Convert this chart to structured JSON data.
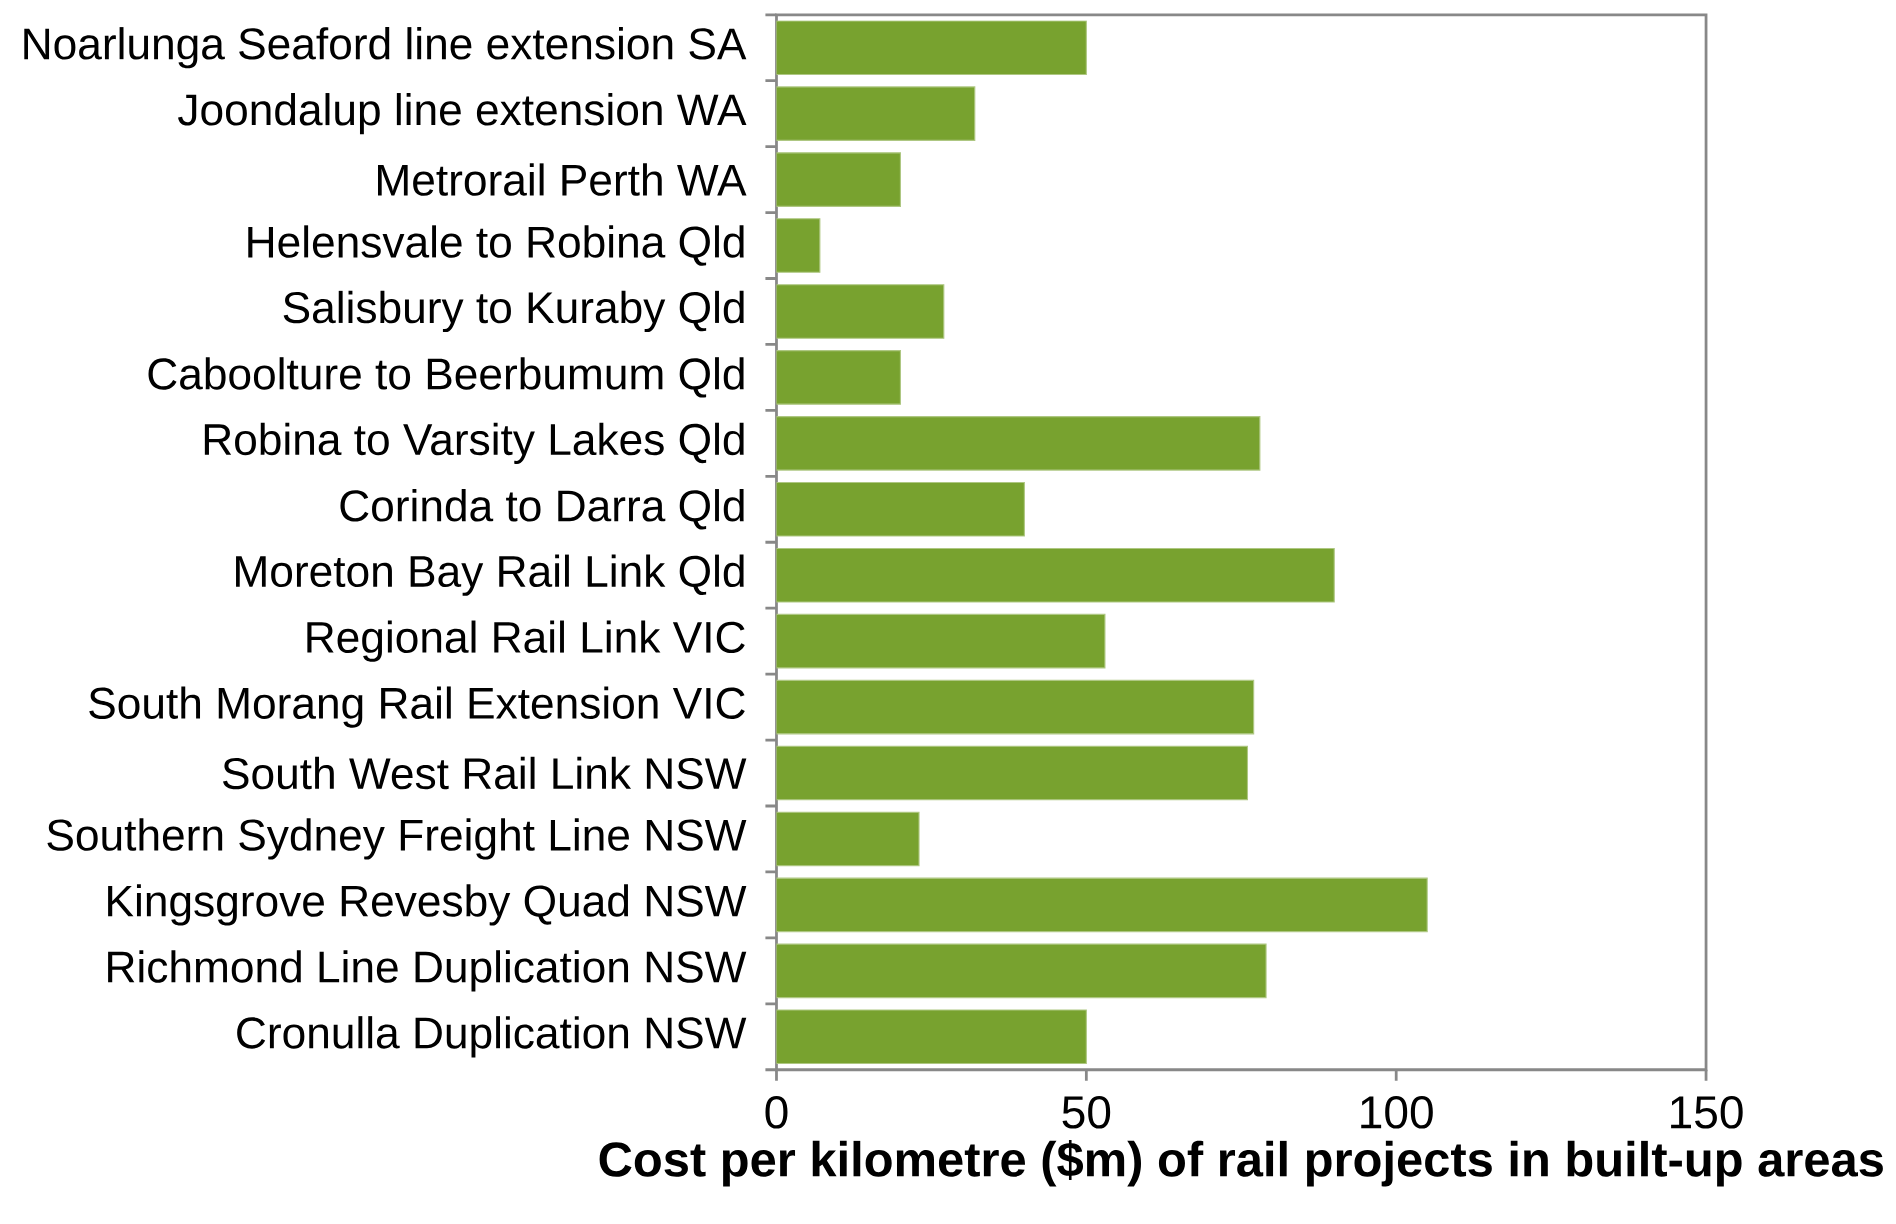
{
  "chart_data": {
    "type": "bar",
    "orientation": "horizontal",
    "xlabel": "Cost per kilometre ($m) of rail projects in built-up areas",
    "categories": [
      "Noarlunga Seaford line extension SA",
      "Joondalup line extension WA",
      "Metrorail Perth WA",
      "Helensvale to Robina Qld",
      "Salisbury to Kuraby Qld",
      "Caboolture to Beerbumum Qld",
      "Robina to Varsity Lakes Qld",
      "Corinda to Darra Qld",
      "Moreton Bay Rail Link Qld",
      "Regional Rail Link VIC",
      "South Morang Rail Extension VIC",
      "South West Rail Link NSW",
      "Southern Sydney Freight Line NSW",
      "Kingsgrove Revesby Quad NSW",
      "Richmond Line Duplication NSW",
      "Cronulla Duplication NSW"
    ],
    "values": [
      50,
      32,
      20,
      7,
      27,
      20,
      78,
      40,
      90,
      53,
      77,
      76,
      23,
      105,
      79,
      50
    ],
    "color": "#78a22f",
    "xlim": [
      0,
      150
    ],
    "xticks": [
      0,
      50,
      100,
      150
    ],
    "grid": false
  }
}
